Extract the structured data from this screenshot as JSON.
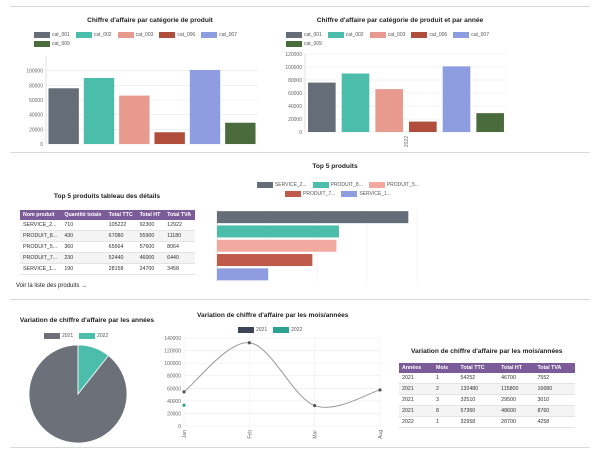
{
  "colors": {
    "cat_001": "#646d78",
    "cat_002": "#4cbdaa",
    "cat_003": "#e99a8f",
    "cat_006": "#b04d3b",
    "cat_007": "#8d9de0",
    "cat_009": "#4a6b3c",
    "header": "#7c5c98",
    "y2021": "#3d4556",
    "y2022": "#2aa392"
  },
  "section1": {
    "chart_left": {
      "title": "Chiffre d'affaire par catégorie de produit",
      "legend": [
        "cat_001",
        "cat_002",
        "cat_003",
        "cat_006",
        "cat_007",
        "cat_009"
      ]
    },
    "chart_right": {
      "title": "Chiffre d'affaire par catégorie de produit et par année",
      "legend": [
        "cat_001",
        "cat_002",
        "cat_003",
        "cat_006",
        "cat_007",
        "cat_009"
      ],
      "x_label": "2022"
    }
  },
  "section2": {
    "table_title": "Top 5 produits tableau des détails",
    "table_headers": [
      "Nom produit",
      "Quantité totale",
      "Total TTC",
      "Total HT",
      "Total TVA"
    ],
    "table_rows": [
      [
        "SERVICE_2...",
        "710",
        "105222",
        "92300",
        "12922"
      ],
      [
        "PRODUIT_8...",
        "430",
        "67080",
        "55900",
        "11180"
      ],
      [
        "PRODUIT_5...",
        "360",
        "65664",
        "57600",
        "8064"
      ],
      [
        "PRODUIT_7...",
        "230",
        "52440",
        "46000",
        "6440"
      ],
      [
        "SERVICE_1...",
        "190",
        "28158",
        "24700",
        "3458"
      ]
    ],
    "link_label": "Voir la liste des produits →",
    "bar_title": "Top 5 produits",
    "bar_legend": [
      "SERVICE_2...",
      "PRODUIT_8...",
      "PRODUIT_5...",
      "PRODUIT_7...",
      "SERVICE_1..."
    ]
  },
  "section3": {
    "pie_title": "Variation de chiffre d'affaire par les années",
    "pie_legend": [
      "2021",
      "2022"
    ],
    "line_title": "Variation de chiffre d'affaire par les mois/années",
    "line_legend": [
      "2021",
      "2022"
    ],
    "table_title": "Variation de chiffre d'affaire par les mois/années",
    "table_headers": [
      "Années",
      "Mois",
      "Total TTC",
      "Total HT",
      "Total TVA"
    ],
    "table_rows": [
      [
        "2021",
        "1",
        "54252",
        "46700",
        "7552"
      ],
      [
        "2021",
        "2",
        "132480",
        "115800",
        "16680"
      ],
      [
        "2021",
        "3",
        "32510",
        "29500",
        "3010"
      ],
      [
        "2021",
        "8",
        "57360",
        "48600",
        "8760"
      ],
      [
        "2022",
        "1",
        "32958",
        "28700",
        "4258"
      ]
    ]
  },
  "chart_data": [
    {
      "type": "bar",
      "title": "Chiffre d'affaire par catégorie de produit",
      "categories": [
        "cat_001",
        "cat_002",
        "cat_003",
        "cat_006",
        "cat_007",
        "cat_009"
      ],
      "values": [
        76000,
        90000,
        66000,
        16000,
        101000,
        29000
      ],
      "yticks": [
        0,
        20000,
        40000,
        60000,
        80000,
        100000
      ],
      "ylim": [
        0,
        120000
      ]
    },
    {
      "type": "bar",
      "title": "Chiffre d'affaire par catégorie de produit et par année",
      "categories": [
        "2022"
      ],
      "series": [
        {
          "name": "cat_001",
          "values": [
            76000
          ]
        },
        {
          "name": "cat_002",
          "values": [
            90000
          ]
        },
        {
          "name": "cat_003",
          "values": [
            66000
          ]
        },
        {
          "name": "cat_006",
          "values": [
            16000
          ]
        },
        {
          "name": "cat_007",
          "values": [
            101000
          ]
        },
        {
          "name": "cat_009",
          "values": [
            29000
          ]
        }
      ],
      "yticks": [
        0,
        20000,
        40000,
        60000,
        80000,
        100000,
        120000
      ],
      "ylim": [
        0,
        120000
      ]
    },
    {
      "type": "bar",
      "title": "Top 5 produits",
      "orientation": "horizontal",
      "categories": [
        "SERVICE_2...",
        "PRODUIT_8...",
        "PRODUIT_5...",
        "PRODUIT_7...",
        "SERVICE_1..."
      ],
      "values": [
        105222,
        67080,
        65664,
        52440,
        28158
      ],
      "colors": [
        "#646d78",
        "#4cbdaa",
        "#f2aaa0",
        "#c05a4a",
        "#8d9de0"
      ],
      "xlim": [
        0,
        110000
      ]
    },
    {
      "type": "pie",
      "title": "Variation de chiffre d'affaire par les années",
      "categories": [
        "2021",
        "2022"
      ],
      "values": [
        276602,
        32958
      ]
    },
    {
      "type": "line",
      "title": "Variation de chiffre d'affaire par les mois/années",
      "x": [
        "Jan",
        "Feb",
        "Mar",
        "Aug"
      ],
      "series": [
        {
          "name": "2021",
          "values": [
            54252,
            132480,
            32510,
            57360
          ]
        },
        {
          "name": "2022",
          "values": [
            32958,
            null,
            null,
            null
          ]
        }
      ],
      "yticks": [
        0,
        20000,
        40000,
        60000,
        80000,
        100000,
        120000,
        140000
      ],
      "ylim": [
        0,
        140000
      ]
    }
  ]
}
